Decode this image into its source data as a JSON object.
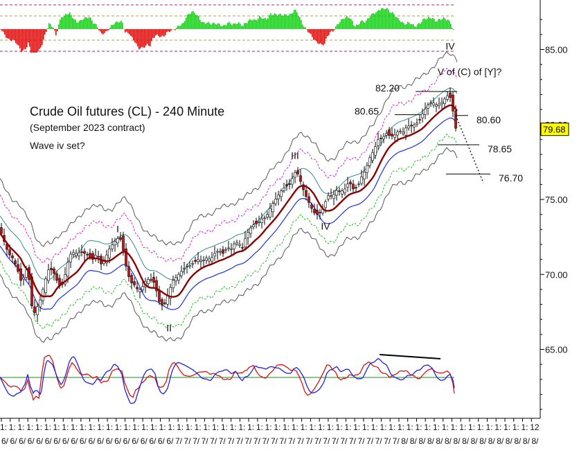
{
  "chart_data": {
    "type": "candlestick",
    "title": "Crude Oil futures (CL) - 240 Minute",
    "subtitle": "(September 2023 contract)",
    "note": "Wave iv set?",
    "y_axis": {
      "ticks": [
        "85.00",
        "80.00",
        "75.00",
        "70.00",
        "65.00"
      ],
      "range": [
        60.3,
        88.0
      ],
      "side": "right"
    },
    "last_price": "79.68",
    "x_tick_labels": {
      "top_row": [
        "1:",
        "1:",
        "1:",
        "1:",
        "1:",
        "1:",
        "1:",
        "1:",
        "1:",
        "1:",
        "1:",
        "1:",
        "1:",
        "1:",
        "1:",
        "1:",
        "1:",
        "1:",
        "1:",
        "1:",
        "1:",
        "1:",
        "1:",
        "1:",
        "1:",
        "1:",
        "1:",
        "1:",
        "1:",
        "1:",
        "1:",
        "1:",
        "1:",
        "1:",
        "1:",
        "1:",
        "1:",
        "1:",
        "1:",
        "1:",
        "1:",
        "1:",
        "1:",
        "1:",
        "1:",
        "1:",
        "1:",
        "1:",
        "1:",
        "1:",
        "1:",
        "1:",
        "1:",
        "1:",
        "1:",
        "1:",
        "1:",
        "1:",
        "1:",
        "1:",
        "12"
      ],
      "bottom_row": [
        "6/",
        "6/",
        "6/",
        "6/",
        "6/",
        "6/",
        "6/",
        "6/",
        "6/",
        "6/",
        "6/",
        "6/",
        "6/",
        "6/",
        "6/",
        "6/",
        "6/",
        "6/",
        "6/",
        "6/",
        "7/",
        "7/",
        "7/",
        "7/",
        "7/",
        "7/",
        "7/",
        "7/",
        "7/",
        "7/",
        "7/",
        "7/",
        "7/",
        "7/",
        "7/",
        "7/",
        "7/",
        "7/",
        "7/",
        "7/",
        "7/",
        "7/",
        "7/",
        "7/",
        "7/",
        "7/",
        "8/",
        "8/",
        "8/",
        "8/",
        "8/",
        "8/",
        "8/",
        "8/",
        "8/",
        "8/",
        "8/",
        "8/",
        "8/",
        "8/",
        "8/",
        "8/"
      ]
    },
    "price_path": [
      [
        0,
        73.0
      ],
      [
        6,
        72.2
      ],
      [
        12,
        71.4
      ],
      [
        18,
        71.1
      ],
      [
        24,
        70.5
      ],
      [
        30,
        69.6
      ],
      [
        36,
        69.9
      ],
      [
        40,
        70.7
      ],
      [
        44,
        68.6
      ],
      [
        48,
        67.2
      ],
      [
        52,
        67.7
      ],
      [
        56,
        68.0
      ],
      [
        60,
        68.6
      ],
      [
        64,
        69.4
      ],
      [
        70,
        70.3
      ],
      [
        76,
        70.3
      ],
      [
        82,
        69.6
      ],
      [
        88,
        69.1
      ],
      [
        92,
        69.6
      ],
      [
        96,
        70.4
      ],
      [
        100,
        71.2
      ],
      [
        104,
        71.5
      ],
      [
        110,
        71.4
      ],
      [
        118,
        71.5
      ],
      [
        126,
        71.3
      ],
      [
        134,
        71.0
      ],
      [
        140,
        71.4
      ],
      [
        146,
        70.7
      ],
      [
        152,
        71.1
      ],
      [
        158,
        71.7
      ],
      [
        164,
        72.1
      ],
      [
        170,
        72.4
      ],
      [
        176,
        72.3
      ],
      [
        180,
        70.9
      ],
      [
        184,
        70.2
      ],
      [
        188,
        69.5
      ],
      [
        194,
        69.3
      ],
      [
        200,
        68.9
      ],
      [
        206,
        69.2
      ],
      [
        212,
        69.7
      ],
      [
        218,
        69.6
      ],
      [
        224,
        69.4
      ],
      [
        228,
        68.4
      ],
      [
        232,
        68.0
      ],
      [
        236,
        67.9
      ],
      [
        240,
        68.3
      ],
      [
        244,
        68.9
      ],
      [
        250,
        69.6
      ],
      [
        256,
        69.9
      ],
      [
        262,
        70.2
      ],
      [
        268,
        70.5
      ],
      [
        274,
        70.6
      ],
      [
        280,
        70.8
      ],
      [
        286,
        71.0
      ],
      [
        292,
        70.9
      ],
      [
        298,
        71.1
      ],
      [
        304,
        71.0
      ],
      [
        310,
        71.4
      ],
      [
        316,
        71.6
      ],
      [
        322,
        71.4
      ],
      [
        328,
        71.8
      ],
      [
        334,
        71.7
      ],
      [
        340,
        72.2
      ],
      [
        346,
        72.0
      ],
      [
        350,
        71.8
      ],
      [
        354,
        72.4
      ],
      [
        360,
        73.0
      ],
      [
        366,
        73.3
      ],
      [
        372,
        73.4
      ],
      [
        378,
        73.7
      ],
      [
        384,
        73.8
      ],
      [
        390,
        74.4
      ],
      [
        396,
        74.9
      ],
      [
        402,
        75.3
      ],
      [
        408,
        75.7
      ],
      [
        414,
        75.9
      ],
      [
        420,
        76.1
      ],
      [
        424,
        76.7
      ],
      [
        428,
        76.9
      ],
      [
        432,
        76.5
      ],
      [
        436,
        75.9
      ],
      [
        440,
        75.4
      ],
      [
        444,
        75.0
      ],
      [
        448,
        74.6
      ],
      [
        452,
        74.2
      ],
      [
        456,
        74.0
      ],
      [
        460,
        74.0
      ],
      [
        464,
        74.2
      ],
      [
        468,
        74.5
      ],
      [
        472,
        75.2
      ],
      [
        476,
        75.3
      ],
      [
        480,
        75.2
      ],
      [
        486,
        75.6
      ],
      [
        492,
        75.5
      ],
      [
        498,
        75.7
      ],
      [
        504,
        76.2
      ],
      [
        510,
        75.7
      ],
      [
        516,
        75.8
      ],
      [
        522,
        76.5
      ],
      [
        528,
        77.0
      ],
      [
        534,
        77.8
      ],
      [
        540,
        78.3
      ],
      [
        546,
        79.0
      ],
      [
        552,
        79.1
      ],
      [
        558,
        79.4
      ],
      [
        564,
        79.2
      ],
      [
        570,
        79.3
      ],
      [
        576,
        79.6
      ],
      [
        582,
        79.5
      ],
      [
        588,
        79.9
      ],
      [
        594,
        79.9
      ],
      [
        600,
        80.0
      ],
      [
        606,
        80.3
      ],
      [
        612,
        80.9
      ],
      [
        618,
        81.3
      ],
      [
        624,
        81.5
      ],
      [
        630,
        81.3
      ],
      [
        636,
        81.4
      ],
      [
        642,
        81.7
      ],
      [
        646,
        81.9
      ],
      [
        650,
        81.8
      ],
      [
        654,
        80.9
      ],
      [
        656,
        79.8
      ],
      [
        660,
        79.7
      ]
    ],
    "wave_labels": [
      {
        "text": "I",
        "x": 170,
        "y": 72.8
      },
      {
        "text": "II",
        "x": 244,
        "y": 66.2
      },
      {
        "text": "III",
        "x": 426,
        "y": 77.7
      },
      {
        "text": "IV",
        "x": 470,
        "y": 73.0
      },
      {
        "text": "IV",
        "x": 650,
        "y": 85.0
      },
      {
        "text": "V of (C) of [Y]?",
        "x": 678,
        "y": 83.3
      }
    ],
    "levels": [
      {
        "value": 82.2,
        "label": "82.20",
        "x_from": 600,
        "x_to": 660
      },
      {
        "value": 80.65,
        "label": "80.65",
        "x_from": 570,
        "x_to": 608
      },
      {
        "value": 80.6,
        "label": "80.60",
        "x_from": 658,
        "x_to": 676
      },
      {
        "value": 78.65,
        "label": "78.65",
        "x_from": 632,
        "x_to": 692
      },
      {
        "value": 76.7,
        "label": "76.70",
        "x_from": 644,
        "x_to": 708
      }
    ],
    "colors": {
      "up_candle": "#ffffff",
      "down_candle": "#cc1111",
      "ma_main": "#8b0000",
      "band_teal": "#3a8a8a",
      "band_blue": "#1f2ee8",
      "band_magenta": "#e01ee0",
      "band_green": "#22c222",
      "band_gray": "#555555",
      "hist_green": "#22c022",
      "hist_red": "#cc1111",
      "osc_red": "#e01010",
      "osc_blue": "#2020e0",
      "osc_zero": "#1a8a1a",
      "price_tag": "#ffff00"
    }
  }
}
